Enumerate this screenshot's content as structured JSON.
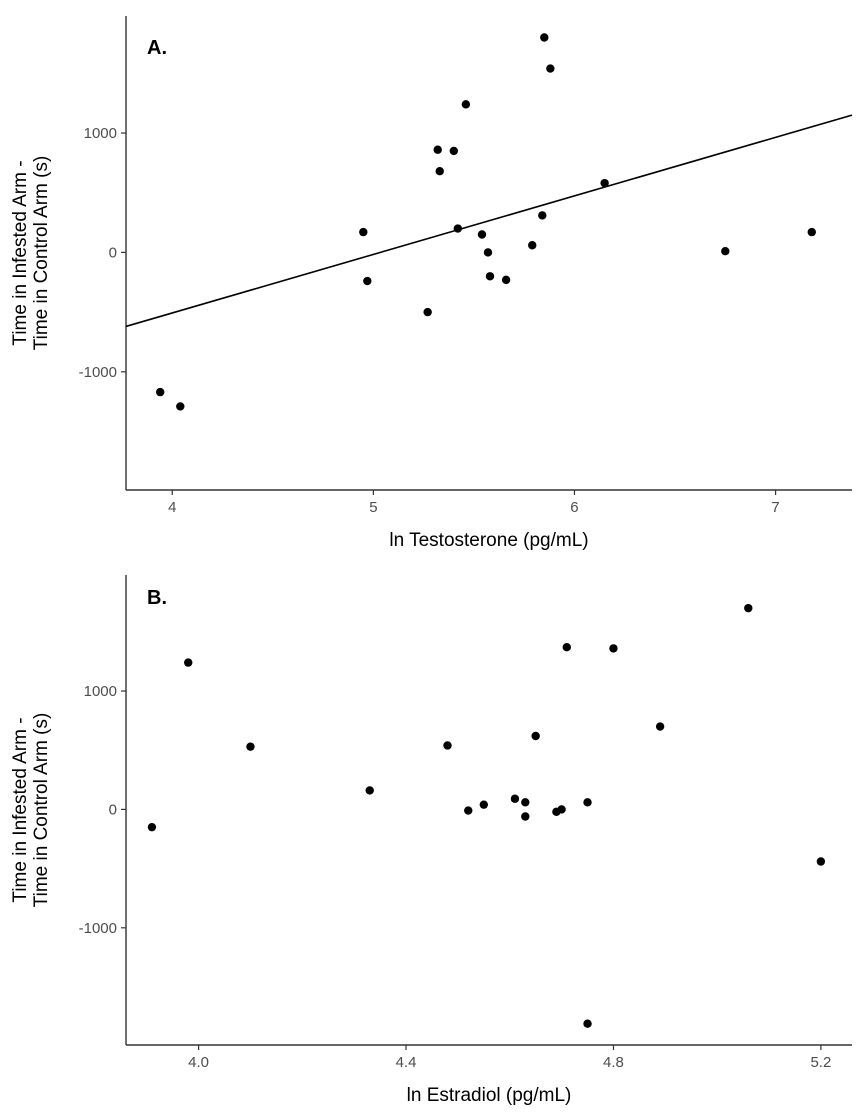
{
  "colors": {
    "point": "#000000",
    "axis": "#333333",
    "background": "#ffffff",
    "text": "#000000",
    "tick_text": "#4d4d4d"
  },
  "chart_data": [
    {
      "type": "scatter",
      "panel_label": "A.",
      "xlabel": "ln Testosterone (pg/mL)",
      "ylabel_lines": [
        "Time in Infested Arm -",
        "Time in Control Arm (s)"
      ],
      "xlim": [
        3.77,
        7.38
      ],
      "ylim": [
        -1990,
        1980
      ],
      "xticks": [
        4,
        5,
        6,
        7
      ],
      "xtick_labels": [
        "4",
        "5",
        "6",
        "7"
      ],
      "yticks": [
        -1000,
        0,
        1000
      ],
      "ytick_labels": [
        "-1000",
        "0",
        "1000"
      ],
      "grid": false,
      "legend": "none",
      "trendline": {
        "x": [
          3.77,
          7.38
        ],
        "y": [
          -620,
          1150
        ]
      },
      "points": [
        {
          "x": 3.94,
          "y": -1170
        },
        {
          "x": 4.04,
          "y": -1290
        },
        {
          "x": 4.95,
          "y": 170
        },
        {
          "x": 4.97,
          "y": -240
        },
        {
          "x": 5.27,
          "y": -500
        },
        {
          "x": 5.32,
          "y": 860
        },
        {
          "x": 5.33,
          "y": 680
        },
        {
          "x": 5.4,
          "y": 850
        },
        {
          "x": 5.42,
          "y": 200
        },
        {
          "x": 5.46,
          "y": 1240
        },
        {
          "x": 5.54,
          "y": 150
        },
        {
          "x": 5.57,
          "y": 0
        },
        {
          "x": 5.58,
          "y": -200
        },
        {
          "x": 5.66,
          "y": -230
        },
        {
          "x": 5.79,
          "y": 60
        },
        {
          "x": 5.84,
          "y": 310
        },
        {
          "x": 5.85,
          "y": 1800
        },
        {
          "x": 5.88,
          "y": 1540
        },
        {
          "x": 6.15,
          "y": 580
        },
        {
          "x": 6.75,
          "y": 10
        },
        {
          "x": 7.18,
          "y": 170
        }
      ]
    },
    {
      "type": "scatter",
      "panel_label": "B.",
      "xlabel": "ln Estradiol (pg/mL)",
      "ylabel_lines": [
        "Time in Infested Arm -",
        "Time in Control Arm (s)"
      ],
      "xlim": [
        3.86,
        5.26
      ],
      "ylim": [
        -1990,
        1980
      ],
      "xticks": [
        4.0,
        4.4,
        4.8,
        5.2
      ],
      "xtick_labels": [
        "4.0",
        "4.4",
        "4.8",
        "5.2"
      ],
      "yticks": [
        -1000,
        0,
        1000
      ],
      "ytick_labels": [
        "-1000",
        "0",
        "1000"
      ],
      "grid": false,
      "legend": "none",
      "points": [
        {
          "x": 3.91,
          "y": -150
        },
        {
          "x": 3.98,
          "y": 1240
        },
        {
          "x": 4.1,
          "y": 530
        },
        {
          "x": 4.33,
          "y": 160
        },
        {
          "x": 4.48,
          "y": 540
        },
        {
          "x": 4.52,
          "y": -10
        },
        {
          "x": 4.55,
          "y": 40
        },
        {
          "x": 4.61,
          "y": 90
        },
        {
          "x": 4.63,
          "y": 60
        },
        {
          "x": 4.63,
          "y": -60
        },
        {
          "x": 4.65,
          "y": 620
        },
        {
          "x": 4.69,
          "y": -20
        },
        {
          "x": 4.7,
          "y": 0
        },
        {
          "x": 4.71,
          "y": 1370
        },
        {
          "x": 4.75,
          "y": 60
        },
        {
          "x": 4.75,
          "y": -1810
        },
        {
          "x": 4.8,
          "y": 1360
        },
        {
          "x": 4.89,
          "y": 700
        },
        {
          "x": 5.06,
          "y": 1700
        },
        {
          "x": 5.2,
          "y": -440
        }
      ]
    }
  ]
}
